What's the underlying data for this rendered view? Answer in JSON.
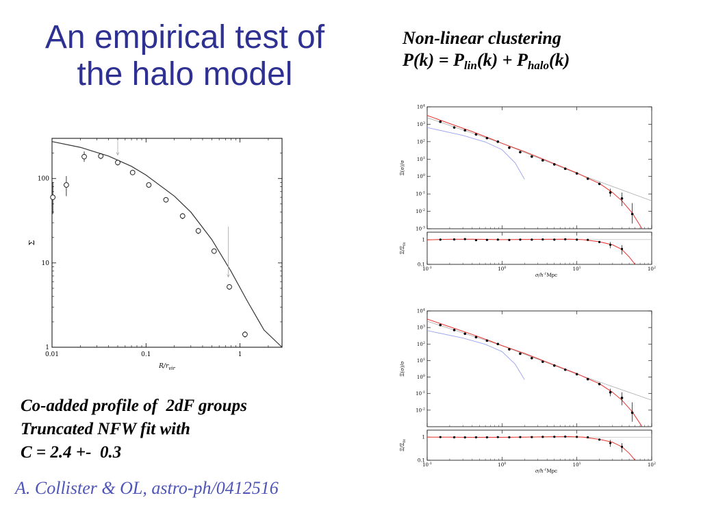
{
  "slide": {
    "title_line1": "An empirical test of",
    "title_line2": "the halo model",
    "right_heading": "Non-linear clustering",
    "formula": {
      "lhs": "P(k) = P",
      "sub1": "lin",
      "mid": "(k) + P",
      "sub2": "halo",
      "end": "(k)"
    },
    "caption_lines": [
      "Co-added profile of  2dF groups",
      "Truncated NFW fit with",
      "C = 2.4 +-  0.3"
    ],
    "citation": "A. Collister & OL, astro-ph/0412516",
    "colors": {
      "title": "#2e3192",
      "citation": "#4f55b8",
      "fit_red": "#e8302c",
      "linear_blue": "#9aa0f0",
      "halo_gray": "#aaaaaa"
    }
  },
  "chart_data": [
    {
      "id": "profile",
      "type": "scatter",
      "title": "",
      "xlabel": "R/r",
      "xlabel_sub": "vir",
      "ylabel": "Σ",
      "xscale": "log",
      "yscale": "log",
      "xlim": [
        0.01,
        2.8
      ],
      "ylim": [
        1,
        300
      ],
      "xticks": [
        0.01,
        0.1,
        1
      ],
      "xtick_labels": [
        "0.01",
        "0.1",
        "1"
      ],
      "yticks": [
        1,
        10,
        100
      ],
      "ytick_labels": [
        "1",
        "10",
        "100"
      ],
      "points": [
        {
          "x": 0.0102,
          "y": 60,
          "lo": 38,
          "hi": 90
        },
        {
          "x": 0.0142,
          "y": 84,
          "lo": 62,
          "hi": 107
        },
        {
          "x": 0.022,
          "y": 182,
          "lo": 158,
          "hi": 210
        },
        {
          "x": 0.033,
          "y": 185,
          "lo": 170,
          "hi": 200
        },
        {
          "x": 0.05,
          "y": 155,
          "lo": 143,
          "hi": 167
        },
        {
          "x": 0.072,
          "y": 118,
          "lo": 110,
          "hi": 126
        },
        {
          "x": 0.107,
          "y": 84,
          "lo": 79,
          "hi": 89
        },
        {
          "x": 0.163,
          "y": 56,
          "lo": 52,
          "hi": 60
        },
        {
          "x": 0.245,
          "y": 36,
          "lo": 33,
          "hi": 39
        },
        {
          "x": 0.36,
          "y": 24,
          "lo": 22,
          "hi": 26
        },
        {
          "x": 0.53,
          "y": 13.8,
          "lo": 12.8,
          "hi": 14.8
        },
        {
          "x": 0.77,
          "y": 5.2,
          "lo": 4.8,
          "hi": 5.6
        },
        {
          "x": 1.13,
          "y": 1.42,
          "lo": 1.3,
          "hi": 1.55
        }
      ],
      "fit": [
        [
          0.01,
          275
        ],
        [
          0.02,
          235
        ],
        [
          0.04,
          185
        ],
        [
          0.07,
          140
        ],
        [
          0.1,
          110
        ],
        [
          0.2,
          62
        ],
        [
          0.3,
          40
        ],
        [
          0.5,
          19
        ],
        [
          0.8,
          8
        ],
        [
          1.2,
          3.5
        ],
        [
          1.8,
          1.6
        ],
        [
          2.8,
          1.0
        ]
      ],
      "arrows": [
        [
          0.05,
          280,
          190
        ],
        [
          0.75,
          27,
          6.8
        ]
      ]
    },
    {
      "id": "pk_top",
      "type": "line",
      "title": "",
      "xlabel": "σ/h",
      "xlabel_sup": "-1",
      "xlabel_unit": "Mpc",
      "ylabel": "Ξ(σ)/σ",
      "ratio_ylabel": "Ξ/Ξ",
      "ratio_ylabel_sub": "fit",
      "xscale": "log",
      "yscale": "log",
      "xlim": [
        0.1,
        100
      ],
      "ylim": [
        0.001,
        10000
      ],
      "xticks": [
        0.1,
        1,
        10,
        100
      ],
      "xtick_base": [
        "10",
        "10",
        "10",
        "10"
      ],
      "xtick_exp": [
        "-1",
        "0",
        "1",
        "2"
      ],
      "yticks": [
        0.001,
        0.01,
        0.1,
        1,
        10,
        100,
        1000,
        10000
      ],
      "ytick_base": [
        "10",
        "10",
        "10",
        "10",
        "10",
        "10",
        "10",
        "10"
      ],
      "ytick_exp": [
        "-3",
        "-2",
        "-1",
        "0",
        "1",
        "2",
        "3",
        "4"
      ],
      "ratio_ylim": [
        0.1,
        2
      ],
      "ratio_yticks": [
        0.1,
        1
      ],
      "ratio_ytick_labels": [
        "0.1",
        "1"
      ],
      "points": [
        [
          0.15,
          1400
        ],
        [
          0.23,
          650
        ],
        [
          0.32,
          450
        ],
        [
          0.45,
          260
        ],
        [
          0.63,
          160
        ],
        [
          0.88,
          100
        ],
        [
          1.25,
          45
        ],
        [
          1.75,
          25
        ],
        [
          2.5,
          14
        ],
        [
          3.5,
          8.5
        ],
        [
          5,
          5.0
        ],
        [
          7,
          2.8
        ],
        [
          10,
          1.5
        ],
        [
          14,
          0.75
        ],
        [
          20,
          0.38
        ],
        [
          28,
          0.12
        ],
        [
          40,
          0.055
        ],
        [
          55,
          0.007
        ]
      ],
      "errors": [
        [
          28,
          0.07,
          0.2
        ],
        [
          40,
          0.02,
          0.12
        ],
        [
          55,
          0.002,
          0.03
        ]
      ],
      "fit": [
        [
          0.1,
          3200
        ],
        [
          0.2,
          1100
        ],
        [
          0.4,
          380
        ],
        [
          0.7,
          150
        ],
        [
          1,
          80
        ],
        [
          2,
          27
        ],
        [
          4,
          8
        ],
        [
          7,
          3.0
        ],
        [
          10,
          1.6
        ],
        [
          15,
          0.7
        ],
        [
          20,
          0.4
        ],
        [
          30,
          0.12
        ],
        [
          40,
          0.04
        ],
        [
          55,
          0.008
        ],
        [
          70,
          0.0015
        ],
        [
          80,
          0.0006
        ]
      ],
      "linear": [
        [
          0.1,
          650
        ],
        [
          0.3,
          230
        ],
        [
          0.6,
          95
        ],
        [
          1,
          35
        ],
        [
          1.5,
          6
        ],
        [
          2.0,
          0.7
        ]
      ],
      "halo": [
        [
          0.1,
          2400
        ],
        [
          1,
          80
        ],
        [
          10,
          1.5
        ],
        [
          100,
          0.04
        ]
      ],
      "ratio_points": [
        [
          0.15,
          1.0
        ],
        [
          0.23,
          1.02
        ],
        [
          0.32,
          1.05
        ],
        [
          0.45,
          0.95
        ],
        [
          0.63,
          0.98
        ],
        [
          0.88,
          1.0
        ],
        [
          1.25,
          0.97
        ],
        [
          1.75,
          1.0
        ],
        [
          2.5,
          1.0
        ],
        [
          3.5,
          1.02
        ],
        [
          5,
          1.0
        ],
        [
          7,
          1.03
        ],
        [
          10,
          1.0
        ],
        [
          14,
          0.98
        ],
        [
          20,
          0.8
        ],
        [
          28,
          0.62
        ],
        [
          40,
          0.42
        ]
      ],
      "ratio_errors": [
        [
          28,
          0.45,
          0.8
        ],
        [
          40,
          0.25,
          0.6
        ]
      ],
      "ratio_fit": [
        [
          0.1,
          0.98
        ],
        [
          0.2,
          1.03
        ],
        [
          0.4,
          1.04
        ],
        [
          1,
          1.0
        ],
        [
          2,
          1.02
        ],
        [
          4,
          1.03
        ],
        [
          8,
          1.04
        ],
        [
          12,
          1.0
        ],
        [
          20,
          0.82
        ],
        [
          30,
          0.62
        ],
        [
          40,
          0.4
        ],
        [
          50,
          0.2
        ],
        [
          60,
          0.1
        ]
      ]
    },
    {
      "id": "pk_bottom",
      "type": "line",
      "title": "",
      "xlabel": "σ/h",
      "xlabel_sup": "-1",
      "xlabel_unit": "Mpc",
      "ylabel": "Ξ(σ)/σ",
      "ratio_ylabel": "Ξ/Ξ",
      "ratio_ylabel_sub": "fit",
      "xscale": "log",
      "yscale": "log",
      "xlim": [
        0.1,
        100
      ],
      "ylim": [
        0.001,
        10000
      ],
      "xticks": [
        0.1,
        1,
        10,
        100
      ],
      "xtick_base": [
        "10",
        "10",
        "10",
        "10"
      ],
      "xtick_exp": [
        "-1",
        "0",
        "1",
        "2"
      ],
      "yticks": [
        0.01,
        0.1,
        1,
        10,
        100,
        1000,
        10000
      ],
      "ytick_base": [
        "10",
        "10",
        "10",
        "10",
        "10",
        "10",
        "10"
      ],
      "ytick_exp": [
        "-2",
        "-1",
        "0",
        "1",
        "2",
        "3",
        "4"
      ],
      "ratio_ylim": [
        0.1,
        2
      ],
      "ratio_yticks": [
        0.1,
        1
      ],
      "ratio_ytick_labels": [
        "0.1",
        "1"
      ],
      "points": [
        [
          0.15,
          1400
        ],
        [
          0.23,
          700
        ],
        [
          0.32,
          420
        ],
        [
          0.45,
          260
        ],
        [
          0.63,
          160
        ],
        [
          0.88,
          100
        ],
        [
          1.25,
          48
        ],
        [
          1.75,
          26
        ],
        [
          2.5,
          14
        ],
        [
          3.5,
          8.5
        ],
        [
          5,
          5.0
        ],
        [
          7,
          2.8
        ],
        [
          10,
          1.5
        ],
        [
          14,
          0.75
        ],
        [
          20,
          0.38
        ],
        [
          28,
          0.12
        ],
        [
          40,
          0.055
        ],
        [
          55,
          0.007
        ]
      ],
      "errors": [
        [
          28,
          0.07,
          0.2
        ],
        [
          40,
          0.02,
          0.12
        ],
        [
          55,
          0.002,
          0.03
        ]
      ],
      "fit": [
        [
          0.1,
          3200
        ],
        [
          0.2,
          1100
        ],
        [
          0.4,
          380
        ],
        [
          0.7,
          150
        ],
        [
          1,
          80
        ],
        [
          2,
          27
        ],
        [
          4,
          8
        ],
        [
          7,
          3.0
        ],
        [
          10,
          1.6
        ],
        [
          15,
          0.7
        ],
        [
          20,
          0.4
        ],
        [
          30,
          0.12
        ],
        [
          40,
          0.04
        ],
        [
          55,
          0.008
        ],
        [
          70,
          0.0015
        ],
        [
          80,
          0.0006
        ]
      ],
      "linear": [
        [
          0.1,
          650
        ],
        [
          0.3,
          230
        ],
        [
          0.6,
          95
        ],
        [
          1,
          35
        ],
        [
          1.5,
          6
        ],
        [
          2.0,
          0.7
        ]
      ],
      "halo": [
        [
          0.1,
          2400
        ],
        [
          1,
          80
        ],
        [
          10,
          1.5
        ],
        [
          100,
          0.04
        ]
      ],
      "ratio_points": [
        [
          0.15,
          1.0
        ],
        [
          0.23,
          0.98
        ],
        [
          0.32,
          0.97
        ],
        [
          0.45,
          0.98
        ],
        [
          0.63,
          0.98
        ],
        [
          0.88,
          1.0
        ],
        [
          1.25,
          0.98
        ],
        [
          1.75,
          1.0
        ],
        [
          2.5,
          1.0
        ],
        [
          3.5,
          1.02
        ],
        [
          5,
          1.03
        ],
        [
          7,
          1.05
        ],
        [
          10,
          1.02
        ],
        [
          14,
          0.98
        ],
        [
          20,
          0.78
        ],
        [
          28,
          0.55
        ],
        [
          40,
          0.38
        ]
      ],
      "ratio_errors": [
        [
          28,
          0.38,
          0.75
        ],
        [
          40,
          0.22,
          0.55
        ]
      ],
      "ratio_fit": [
        [
          0.1,
          1.0
        ],
        [
          0.2,
          1.0
        ],
        [
          0.4,
          0.97
        ],
        [
          1,
          0.98
        ],
        [
          2,
          1.0
        ],
        [
          4,
          1.03
        ],
        [
          8,
          1.05
        ],
        [
          12,
          1.0
        ],
        [
          20,
          0.8
        ],
        [
          30,
          0.6
        ],
        [
          40,
          0.38
        ],
        [
          50,
          0.2
        ],
        [
          60,
          0.1
        ]
      ]
    }
  ]
}
